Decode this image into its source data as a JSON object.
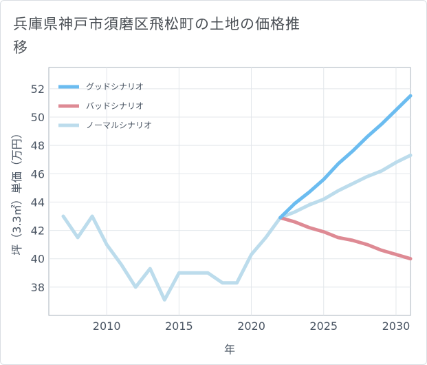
{
  "title": "兵庫県神戸市須磨区飛松町の土地の価格推移",
  "chart_data": {
    "type": "line",
    "title": "兵庫県神戸市須磨区飛松町の土地の価格推移",
    "xlabel": "年",
    "ylabel": "坪（3.3㎡）単価（万円）",
    "xlim": [
      2006,
      2031
    ],
    "ylim": [
      36,
      53.5
    ],
    "xticks": [
      2010,
      2015,
      2020,
      2025,
      2030
    ],
    "yticks": [
      38,
      40,
      42,
      44,
      46,
      48,
      50,
      52
    ],
    "grid": true,
    "legend_position": "top-left",
    "series": [
      {
        "name": "グッドシナリオ",
        "color": "#6bbcf0",
        "x": [
          2022,
          2023,
          2024,
          2025,
          2026,
          2027,
          2028,
          2029,
          2030,
          2031
        ],
        "values": [
          42.9,
          43.9,
          44.7,
          45.6,
          46.7,
          47.6,
          48.6,
          49.5,
          50.5,
          51.5
        ]
      },
      {
        "name": "バッドシナリオ",
        "color": "#de8a94",
        "x": [
          2022,
          2023,
          2024,
          2025,
          2026,
          2027,
          2028,
          2029,
          2030,
          2031
        ],
        "values": [
          42.9,
          42.6,
          42.2,
          41.9,
          41.5,
          41.3,
          41.0,
          40.6,
          40.3,
          40.0
        ]
      },
      {
        "name": "ノーマルシナリオ",
        "color": "#bcdcec",
        "x": [
          2007,
          2008,
          2009,
          2010,
          2011,
          2012,
          2013,
          2014,
          2015,
          2016,
          2017,
          2018,
          2019,
          2020,
          2021,
          2022,
          2023,
          2024,
          2025,
          2026,
          2027,
          2028,
          2029,
          2030,
          2031
        ],
        "values": [
          43.0,
          41.5,
          43.0,
          41.0,
          39.6,
          38.0,
          39.3,
          37.1,
          39.0,
          39.0,
          39.0,
          38.3,
          38.3,
          40.3,
          41.5,
          42.9,
          43.3,
          43.8,
          44.2,
          44.8,
          45.3,
          45.8,
          46.2,
          46.8,
          47.3
        ]
      }
    ]
  }
}
